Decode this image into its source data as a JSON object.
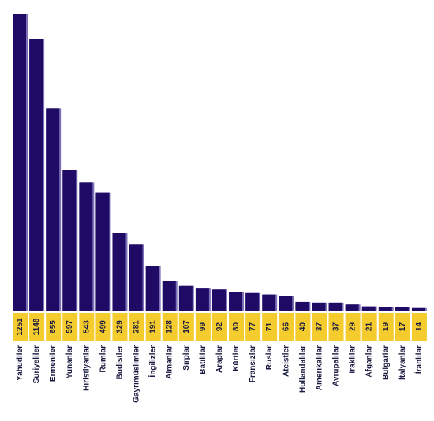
{
  "colors": {
    "bar": "#1f0a66",
    "bar_shade": "#7d72b8",
    "value_strip": "#f5cc2e",
    "label_text": "#1a1a40"
  },
  "chart_data": {
    "type": "bar",
    "title": "",
    "xlabel": "",
    "ylabel": "",
    "ylim": [
      0,
      1251
    ],
    "grid": false,
    "legend": "none",
    "categories": [
      "Yahudiler",
      "Suriyeliler",
      "Ermeniler",
      "Yunanlar",
      "Hıristiyanlar",
      "Rumlar",
      "Budistler",
      "Gayrimüslimler",
      "İngilizler",
      "Almanlar",
      "Sırplar",
      "Batılılar",
      "Araplar",
      "Kürtler",
      "Fransızlar",
      "Ruslar",
      "Ateistler",
      "Hollandalılar",
      "Amerikalılar",
      "Avrupalılar",
      "Iraklılar",
      "Afganlar",
      "Bulgarlar",
      "İtalyanlar",
      "İranlılar"
    ],
    "values": [
      1251,
      1148,
      855,
      597,
      543,
      499,
      329,
      281,
      191,
      128,
      107,
      99,
      92,
      80,
      77,
      71,
      66,
      40,
      37,
      37,
      29,
      21,
      19,
      17,
      14
    ]
  }
}
